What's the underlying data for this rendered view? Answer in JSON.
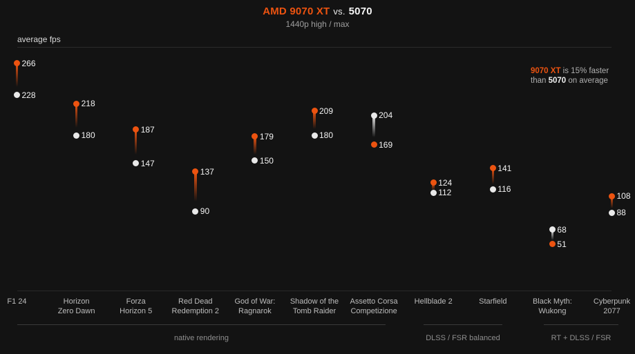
{
  "header": {
    "title_gpu1": "AMD 9070 XT",
    "title_vs": "vs.",
    "title_gpu2": "5070",
    "subtitle": "1440p high / max"
  },
  "axis": {
    "ylabel": "average fps"
  },
  "annotation": {
    "line1_gpu": "9070 XT",
    "line1_rest": " is 15% faster",
    "line2_pre": "than ",
    "line2_gpu": "5070",
    "line2_rest": " on average"
  },
  "colors": {
    "background": "#131313",
    "accent_orange": "#ec5310",
    "dot_white": "#e9e9e9",
    "divider": "#2c2c2c"
  },
  "chart_data": {
    "type": "lollipop",
    "title": "AMD 9070 XT vs. 5070",
    "subtitle": "1440p high / max",
    "ylabel": "average fps",
    "legend_position": "none",
    "grid": false,
    "ylim": [
      40,
      280
    ],
    "categories": [
      "F1 24",
      "Horizon Zero Dawn",
      "Forza Horizon 5",
      "Red Dead Redemption 2",
      "God of War: Ragnarok",
      "Shadow of the Tomb Raider",
      "Assetto Corsa Competizione",
      "Hellblade 2",
      "Starfield",
      "Black Myth: Wukong",
      "Cyberpunk 2077"
    ],
    "category_lines": [
      [
        "F1 24"
      ],
      [
        "Horizon",
        "Zero Dawn"
      ],
      [
        "Forza",
        "Horizon 5"
      ],
      [
        "Red Dead",
        "Redemption 2"
      ],
      [
        "God of War:",
        "Ragnarok"
      ],
      [
        "Shadow of the",
        "Tomb Raider"
      ],
      [
        "Assetto Corsa",
        "Competizione"
      ],
      [
        "Hellblade 2"
      ],
      [
        "Starfield"
      ],
      [
        "Black Myth:",
        "Wukong"
      ],
      [
        "Cyberpunk",
        "2077"
      ]
    ],
    "series": [
      {
        "name": "AMD 9070 XT",
        "color": "#ec5310",
        "values": [
          266,
          218,
          187,
          137,
          179,
          209,
          169,
          124,
          141,
          51,
          108
        ]
      },
      {
        "name": "5070",
        "color": "#e9e9e9",
        "values": [
          228,
          180,
          147,
          90,
          150,
          180,
          204,
          112,
          116,
          68,
          88
        ]
      }
    ],
    "groups": [
      {
        "label": "native rendering",
        "start_index": 0,
        "end_index": 6
      },
      {
        "label": "DLSS / FSR balanced",
        "start_index": 7,
        "end_index": 8
      },
      {
        "label": "RT + DLSS / FSR",
        "start_index": 9,
        "end_index": 10
      }
    ],
    "summary": "9070 XT is 15% faster than 5070 on average"
  }
}
